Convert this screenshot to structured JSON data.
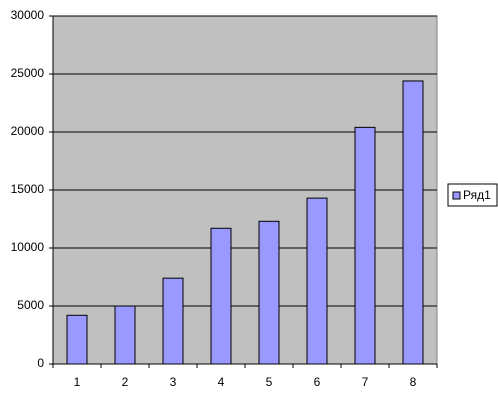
{
  "chart_data": {
    "type": "bar",
    "categories": [
      "1",
      "2",
      "3",
      "4",
      "5",
      "6",
      "7",
      "8"
    ],
    "series": [
      {
        "name": "Ряд1",
        "color": "#9999ff",
        "values": [
          4200,
          5000,
          7400,
          11700,
          12300,
          14300,
          20400,
          24400
        ]
      }
    ],
    "ylim": [
      0,
      30000
    ],
    "yticks": [
      0,
      5000,
      10000,
      15000,
      20000,
      25000,
      30000
    ],
    "grid": true,
    "plot_background": "#c0c0c0",
    "legend": "right"
  }
}
